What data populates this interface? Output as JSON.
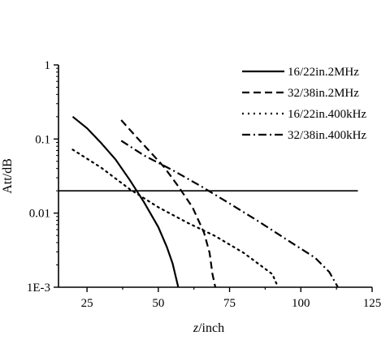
{
  "chart_data": {
    "type": "line",
    "xlabel_italic": "z",
    "xlabel_rest": "/inch",
    "ylabel": "Att/dB",
    "xlim": [
      15,
      125
    ],
    "ylim": [
      0.001,
      1
    ],
    "yscale": "log",
    "xticks": [
      25,
      50,
      75,
      100,
      125
    ],
    "yticks": [
      {
        "value": 1,
        "label": "1"
      },
      {
        "value": 0.1,
        "label": "0.1"
      },
      {
        "value": 0.01,
        "label": "0.01"
      },
      {
        "value": 0.001,
        "label": "1E-3"
      }
    ],
    "reference_line": {
      "y": 0.02,
      "x_start": 15,
      "x_end": 120
    },
    "legend_position": "top-right",
    "series": [
      {
        "name": "16/22in.2MHz",
        "style": "solid",
        "points": [
          [
            20,
            0.2
          ],
          [
            25,
            0.14
          ],
          [
            30,
            0.088
          ],
          [
            35,
            0.053
          ],
          [
            40,
            0.028
          ],
          [
            45,
            0.014
          ],
          [
            50,
            0.0065
          ],
          [
            53,
            0.0035
          ],
          [
            55,
            0.0021
          ],
          [
            57,
            0.001
          ]
        ]
      },
      {
        "name": "32/38in.2MHz",
        "style": "dashed",
        "points": [
          [
            37,
            0.18
          ],
          [
            42,
            0.11
          ],
          [
            47,
            0.068
          ],
          [
            52,
            0.042
          ],
          [
            57,
            0.023
          ],
          [
            62,
            0.012
          ],
          [
            66,
            0.0055
          ],
          [
            68,
            0.0029
          ],
          [
            69,
            0.0015
          ],
          [
            70,
            0.001
          ]
        ]
      },
      {
        "name": "16/22in.400kHz",
        "style": "dotted",
        "points": [
          [
            20,
            0.072
          ],
          [
            30,
            0.041
          ],
          [
            40,
            0.021
          ],
          [
            50,
            0.012
          ],
          [
            60,
            0.0075
          ],
          [
            70,
            0.0049
          ],
          [
            80,
            0.0029
          ],
          [
            90,
            0.0015
          ],
          [
            92,
            0.001
          ]
        ]
      },
      {
        "name": "32/38in.400kHz",
        "style": "dashdot",
        "points": [
          [
            37,
            0.095
          ],
          [
            45,
            0.06
          ],
          [
            55,
            0.038
          ],
          [
            65,
            0.023
          ],
          [
            75,
            0.0135
          ],
          [
            85,
            0.0078
          ],
          [
            95,
            0.0044
          ],
          [
            105,
            0.0025
          ],
          [
            110,
            0.0016
          ],
          [
            113,
            0.001
          ]
        ]
      }
    ]
  }
}
